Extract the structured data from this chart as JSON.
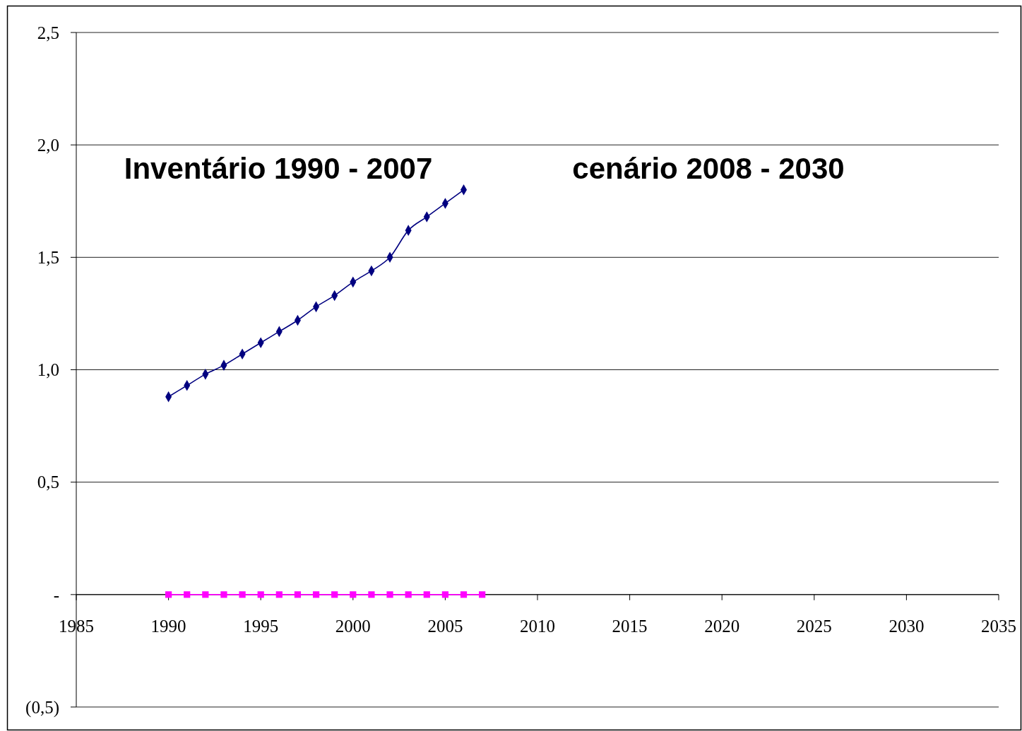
{
  "chart_data": {
    "type": "line",
    "x": [
      1990,
      1991,
      1992,
      1993,
      1994,
      1995,
      1996,
      1997,
      1998,
      1999,
      2000,
      2001,
      2002,
      2003,
      2004,
      2005,
      2006,
      2007
    ],
    "series": [
      {
        "color": "#000080",
        "marker": "diamond",
        "values": [
          0.88,
          0.93,
          0.98,
          1.02,
          1.07,
          1.12,
          1.17,
          1.22,
          1.28,
          1.33,
          1.39,
          1.44,
          1.5,
          1.62,
          1.68,
          1.74,
          1.8,
          null
        ]
      },
      {
        "color": "#ff00ff",
        "marker": "square",
        "values": [
          0,
          0,
          0,
          0,
          0,
          0,
          0,
          0,
          0,
          0,
          0,
          0,
          0,
          0,
          0,
          0,
          0,
          0
        ]
      }
    ],
    "xlim": [
      1985,
      2035
    ],
    "xticks": [
      1985,
      1990,
      1995,
      2000,
      2005,
      2010,
      2015,
      2020,
      2025,
      2030,
      2035
    ],
    "ylim": [
      -0.5,
      2.5
    ],
    "yticks": [
      {
        "value": -0.5,
        "label": "(0,5)"
      },
      {
        "value": 0,
        "label": "-"
      },
      {
        "value": 0.5,
        "label": "0,5"
      },
      {
        "value": 1,
        "label": "1,0"
      },
      {
        "value": 1.5,
        "label": "1,5"
      },
      {
        "value": 2,
        "label": "2,0"
      },
      {
        "value": 2.5,
        "label": "2,5"
      }
    ],
    "grid": "y",
    "annotations": [
      "Inventário 1990 - 2007",
      "cenário 2008 - 2030"
    ]
  }
}
